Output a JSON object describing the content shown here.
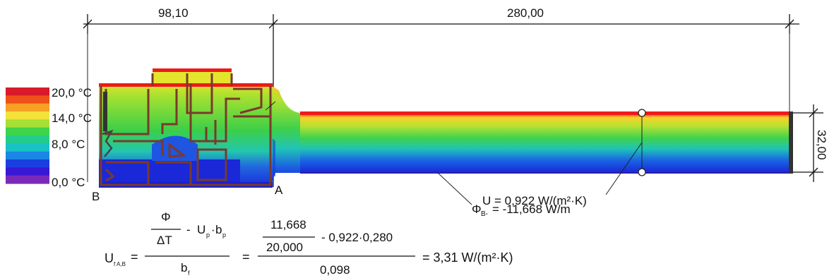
{
  "dimensions": {
    "frame_width": "98,10",
    "panel_width": "280,00",
    "panel_thickness": "32,00"
  },
  "legend": {
    "labels": [
      "20,0 °C",
      "14,0 °C",
      "8,0 °C",
      "0,0 °C"
    ],
    "colors": [
      "#d81a2a",
      "#f0501a",
      "#f6a024",
      "#f3e23a",
      "#a6df35",
      "#3fd44a",
      "#22cc8c",
      "#18c2c6",
      "#1b86e5",
      "#1a3fe0",
      "#3818d4",
      "#7a2ab8"
    ]
  },
  "points": {
    "a": "A",
    "b": "B"
  },
  "annotations": {
    "u_value": "U = 0,922 W/(m²·K)",
    "phi_symbol": "Φ",
    "phi_sub": "B-",
    "phi_value": "= -11,668 W/m"
  },
  "formula": {
    "lhs_symbol": "U",
    "lhs_sub": "f A,B",
    "eq": "=",
    "frac1_phi": "Φ",
    "frac1_delta": "ΔT",
    "frac1_minus": "-",
    "up_symbol": "U",
    "up_sub": "p",
    "dot": "·",
    "bp_symbol": "b",
    "bp_sub": "p",
    "bf_symbol": "b",
    "bf_sub": "f",
    "frac2_num": "11,668",
    "frac2_den": "20,000",
    "minus_term": "-  0,922·0,280",
    "frac_den": "0,098",
    "result": "=  3,31 W/(m²·K)"
  }
}
